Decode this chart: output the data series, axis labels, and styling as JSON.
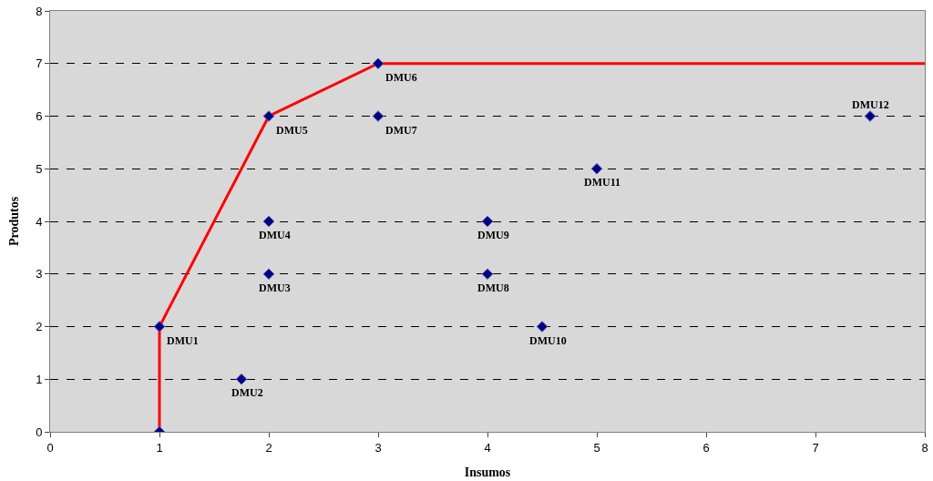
{
  "chart_data": {
    "type": "scatter",
    "xlabel": "Insumos",
    "ylabel": "Produtos",
    "series": [
      {
        "type": "line",
        "color": "#ff0000",
        "marker": "none",
        "x": [
          1,
          1,
          2,
          3,
          8
        ],
        "values": [
          0,
          2,
          6,
          7,
          7
        ]
      },
      {
        "color": "#000080",
        "marker": "diamond",
        "x": [
          1,
          1,
          1.75,
          2,
          2,
          2,
          3,
          3,
          4,
          4,
          4.5,
          5,
          7.5
        ],
        "values": [
          0,
          2,
          1,
          3,
          4,
          6,
          7,
          6,
          3,
          4,
          2,
          5,
          6
        ]
      }
    ],
    "annotations": [
      {
        "text": "DMU1",
        "x": 1,
        "y": 2
      },
      {
        "text": "DMU2",
        "x": 1.75,
        "y": 1
      },
      {
        "text": "DMU3",
        "x": 2,
        "y": 3
      },
      {
        "text": "DMU4",
        "x": 2,
        "y": 4
      },
      {
        "text": "DMU5",
        "x": 2,
        "y": 6
      },
      {
        "text": "DMU6",
        "x": 3,
        "y": 7
      },
      {
        "text": "DMU7",
        "x": 3,
        "y": 6
      },
      {
        "text": "DMU8",
        "x": 4,
        "y": 3
      },
      {
        "text": "DMU9",
        "x": 4,
        "y": 4
      },
      {
        "text": "DMU10",
        "x": 4.5,
        "y": 2
      },
      {
        "text": "DMU11",
        "x": 5,
        "y": 5
      },
      {
        "text": "DMU12",
        "x": 7.5,
        "y": 6
      }
    ],
    "xlim": [
      0,
      8
    ],
    "xticks": [
      0,
      1,
      2,
      3,
      4,
      5,
      6,
      7,
      8
    ],
    "ylim": [
      0,
      8
    ],
    "yticks": [
      0,
      1,
      2,
      3,
      4,
      5,
      6,
      7,
      8
    ],
    "grid": "y"
  }
}
